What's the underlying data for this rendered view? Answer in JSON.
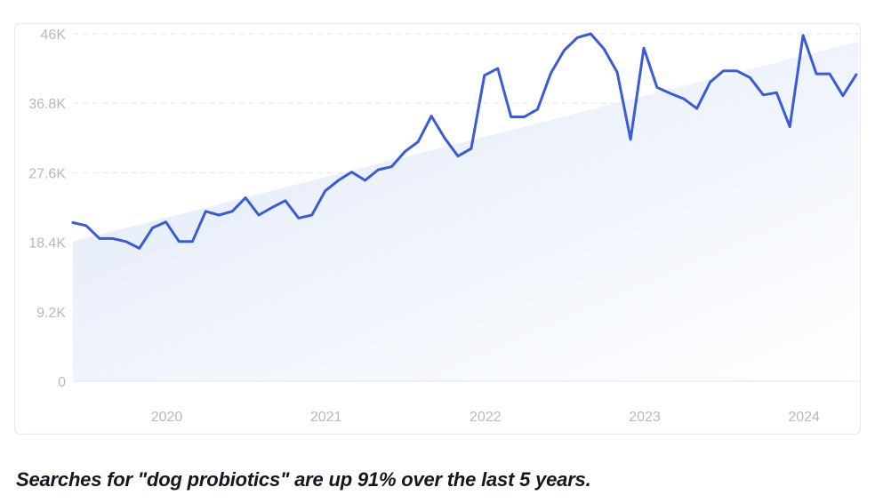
{
  "caption": "Searches for \"dog probiotics\" are up 91% over the last 5 years.",
  "colors": {
    "line": "#3a5bd9",
    "area_start": "#dfe8f8",
    "area_end": "#ffffff",
    "grid": "#e4e7ee",
    "tick_text": "#b5b9c4"
  },
  "chart_data": {
    "type": "line",
    "title": "",
    "xlabel": "",
    "ylabel": "",
    "ylim": [
      0,
      46000
    ],
    "y_ticks": [
      {
        "value": 0,
        "label": "0"
      },
      {
        "value": 9200,
        "label": "9.2K"
      },
      {
        "value": 18400,
        "label": "18.4K"
      },
      {
        "value": 27600,
        "label": "27.6K"
      },
      {
        "value": 36800,
        "label": "36.8K"
      },
      {
        "value": 46000,
        "label": "46K"
      }
    ],
    "x_ticks": [
      {
        "value": "2020-01",
        "label": "2020"
      },
      {
        "value": "2021-01",
        "label": "2021"
      },
      {
        "value": "2022-01",
        "label": "2022"
      },
      {
        "value": "2023-01",
        "label": "2023"
      },
      {
        "value": "2024-01",
        "label": "2024"
      }
    ],
    "grid": true,
    "trend": {
      "start": {
        "x": "2019-06",
        "y": 18500
      },
      "end": {
        "x": "2024-05",
        "y": 45000
      }
    },
    "series": [
      {
        "x": [
          "2019-06",
          "2019-07",
          "2019-08",
          "2019-09",
          "2019-10",
          "2019-11",
          "2019-12",
          "2020-01",
          "2020-02",
          "2020-03",
          "2020-04",
          "2020-05",
          "2020-06",
          "2020-07",
          "2020-08",
          "2020-09",
          "2020-10",
          "2020-11",
          "2020-12",
          "2021-01",
          "2021-02",
          "2021-03",
          "2021-04",
          "2021-05",
          "2021-06",
          "2021-07",
          "2021-08",
          "2021-09",
          "2021-10",
          "2021-11",
          "2021-12",
          "2022-01",
          "2022-02",
          "2022-03",
          "2022-04",
          "2022-05",
          "2022-06",
          "2022-07",
          "2022-08",
          "2022-09",
          "2022-10",
          "2022-11",
          "2022-12",
          "2023-01",
          "2023-02",
          "2023-03",
          "2023-04",
          "2023-05",
          "2023-06",
          "2023-07",
          "2023-08",
          "2023-09",
          "2023-10",
          "2023-11",
          "2023-12",
          "2024-01",
          "2024-02",
          "2024-03",
          "2024-04",
          "2024-05"
        ],
        "values": [
          21000,
          20600,
          18900,
          18900,
          18500,
          17600,
          20300,
          21100,
          18500,
          18500,
          22500,
          22000,
          22500,
          24300,
          22000,
          23000,
          23900,
          21600,
          22000,
          25200,
          26600,
          27700,
          26600,
          28000,
          28400,
          30400,
          31700,
          35100,
          32200,
          29800,
          30800,
          40500,
          41400,
          35000,
          35000,
          36000,
          40800,
          43800,
          45500,
          46000,
          44000,
          40900,
          32000,
          44100,
          38900,
          38100,
          37400,
          36100,
          39600,
          41100,
          41100,
          40200,
          37900,
          38200,
          33700,
          45800,
          40700,
          40700,
          37800,
          40600
        ]
      }
    ]
  }
}
